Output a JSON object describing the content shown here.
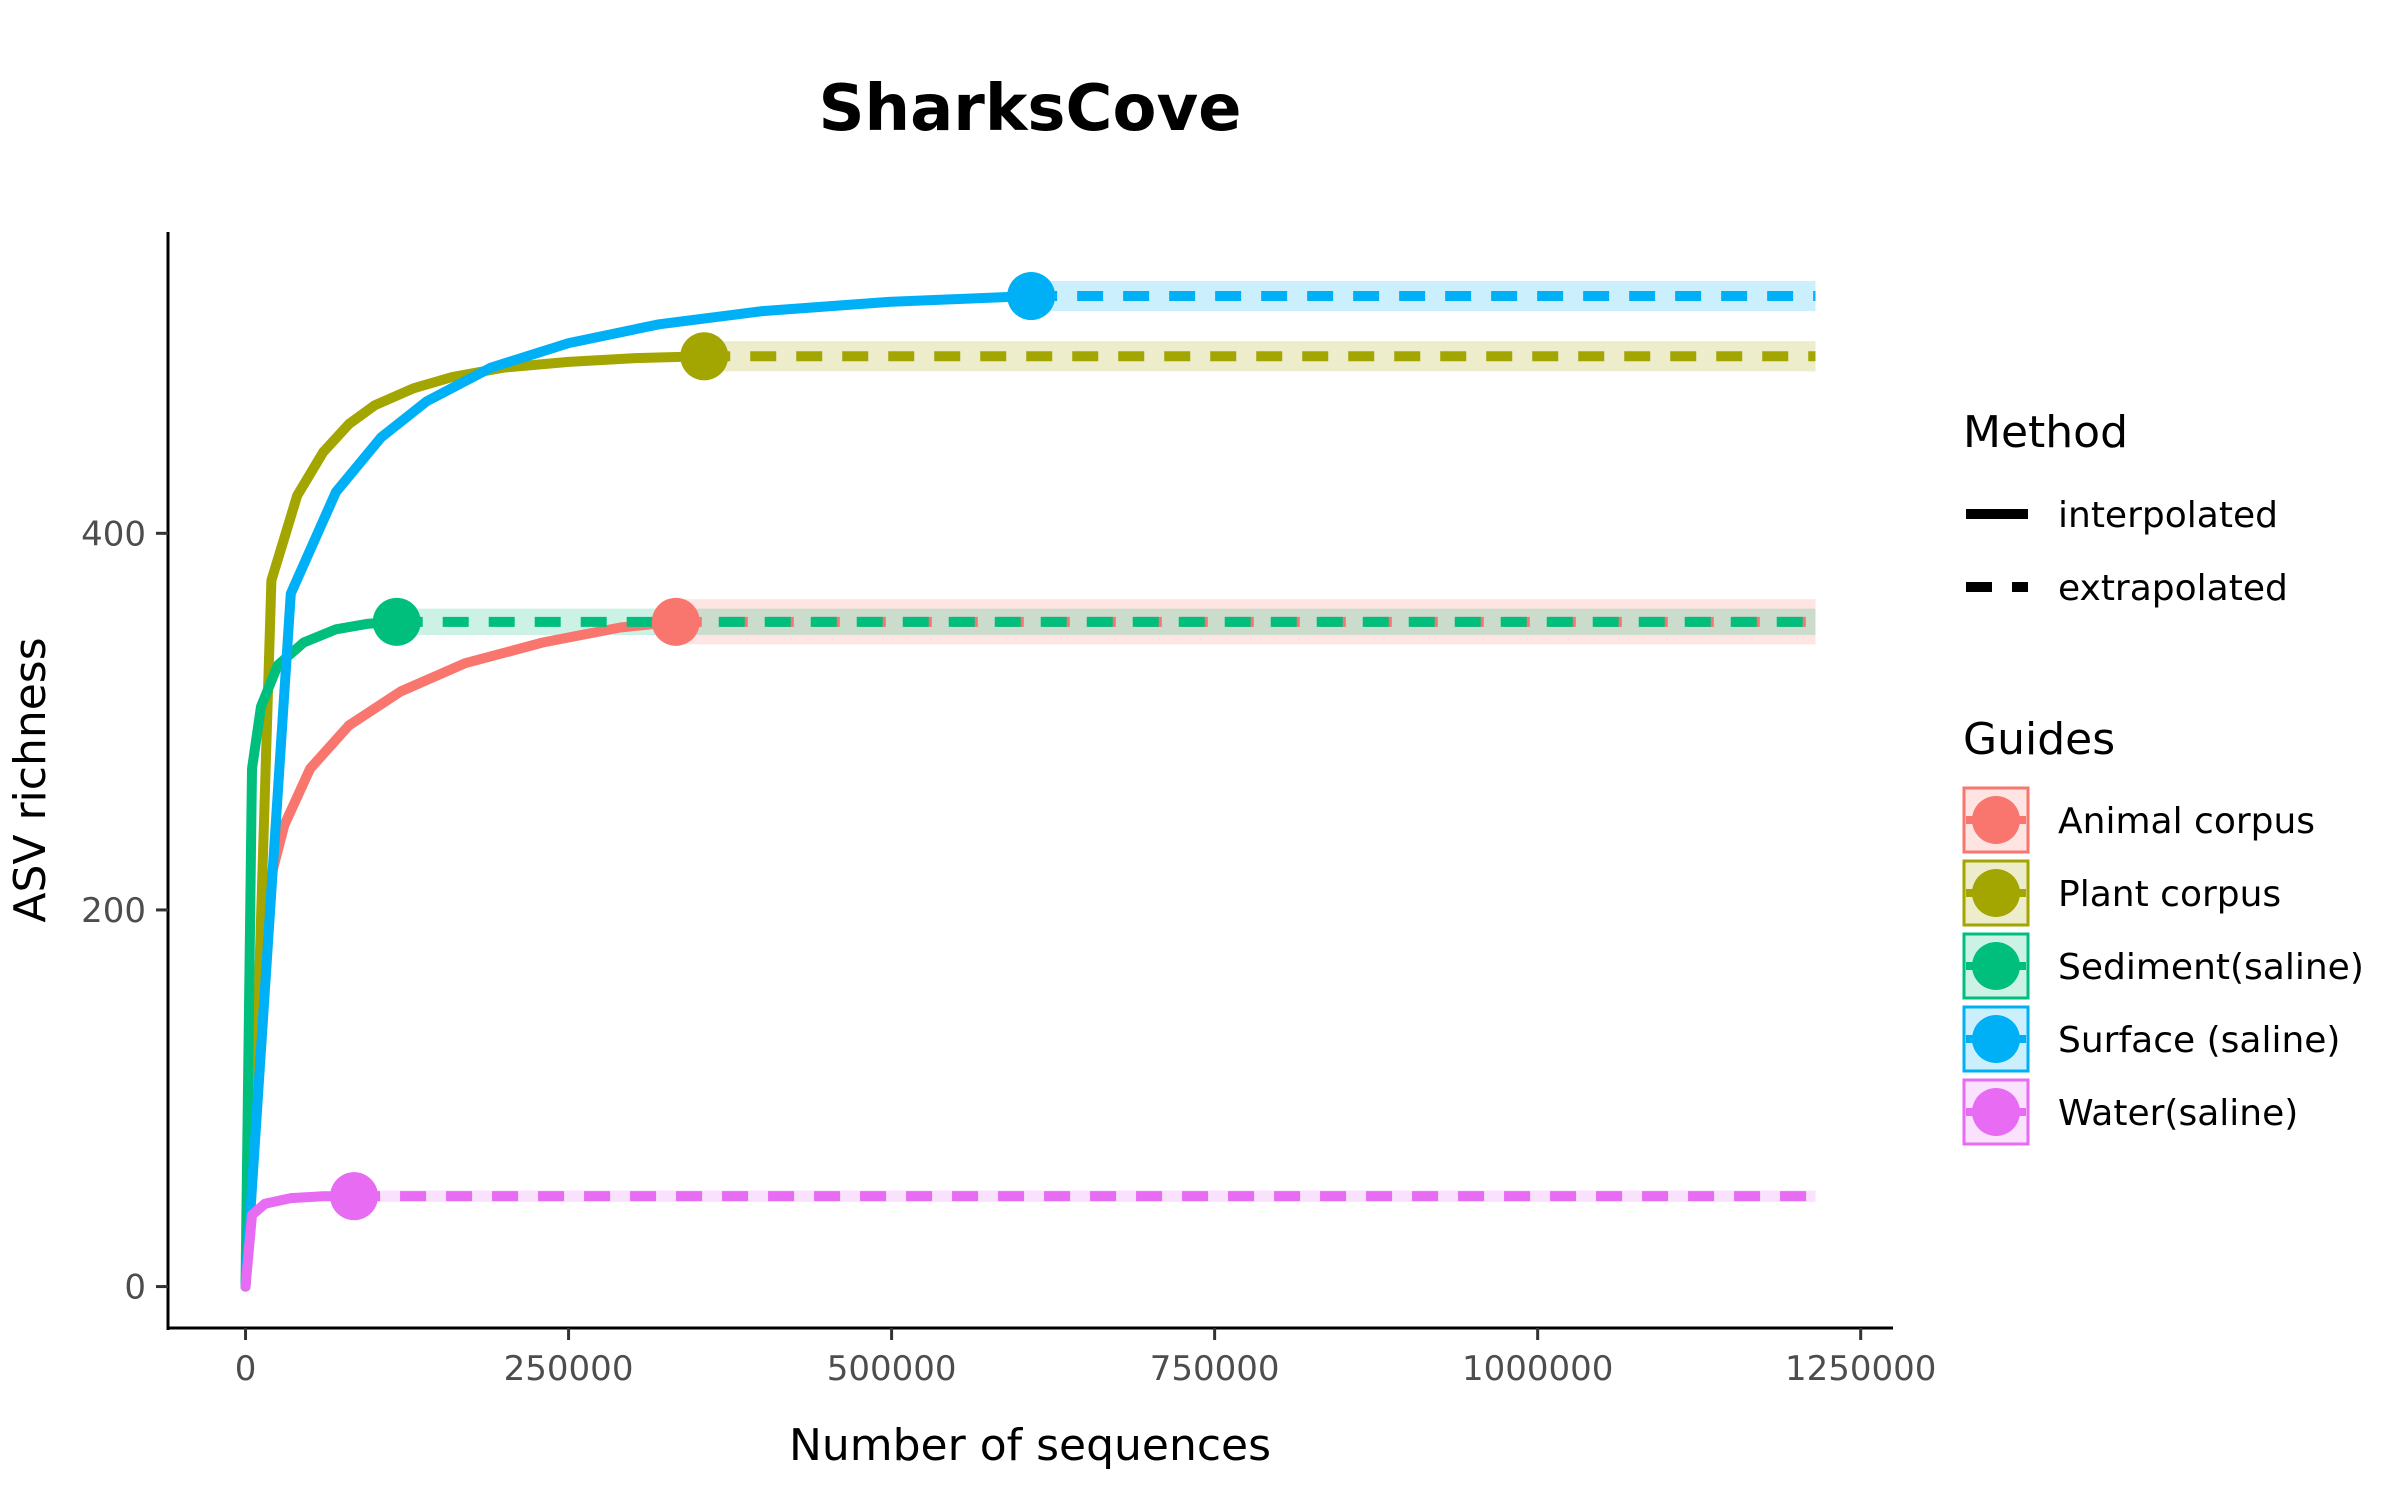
{
  "chart_data": {
    "type": "line",
    "title": "SharksCove",
    "xlabel": "Number of sequences",
    "ylabel": "ASV richness",
    "xlim": [
      -60000,
      1275000
    ],
    "ylim": [
      -22,
      560
    ],
    "x_ticks": [
      0,
      250000,
      500000,
      750000,
      1000000,
      1250000
    ],
    "x_tick_labels": [
      "0",
      "250000",
      "500000",
      "750000",
      "1000000",
      "1250000"
    ],
    "y_ticks": [
      0,
      200,
      400
    ],
    "y_tick_labels": [
      "0",
      "200",
      "400"
    ],
    "grid": false,
    "legend_position": "right",
    "method_legend": {
      "title": "Method",
      "entries": [
        {
          "label": "interpolated",
          "style": "solid"
        },
        {
          "label": "extrapolated",
          "style": "dashed"
        }
      ]
    },
    "series_legend_title": "Guides",
    "x_max_extrapolated": 1215000,
    "series": [
      {
        "name": "Animal corpus",
        "color": "#F8766D",
        "interpolated": [
          [
            0,
            0
          ],
          [
            15000,
            205
          ],
          [
            30000,
            245
          ],
          [
            50000,
            275
          ],
          [
            80000,
            298
          ],
          [
            120000,
            316
          ],
          [
            170000,
            331
          ],
          [
            230000,
            342
          ],
          [
            290000,
            350
          ],
          [
            333000,
            353
          ]
        ],
        "reference_point": [
          333000,
          353
        ],
        "extrapolated_value": 353,
        "ci_halfwidth": 12
      },
      {
        "name": "Plant corpus",
        "color": "#A3A500",
        "interpolated": [
          [
            0,
            0
          ],
          [
            10000,
            150
          ],
          [
            20000,
            375
          ],
          [
            40000,
            420
          ],
          [
            60000,
            443
          ],
          [
            80000,
            458
          ],
          [
            100000,
            468
          ],
          [
            130000,
            477
          ],
          [
            160000,
            483
          ],
          [
            200000,
            488
          ],
          [
            250000,
            491
          ],
          [
            300000,
            493
          ],
          [
            355000,
            494
          ]
        ],
        "reference_point": [
          355000,
          494
        ],
        "extrapolated_value": 494,
        "ci_halfwidth": 8
      },
      {
        "name": "Sediment(saline)",
        "color": "#00BF7D",
        "interpolated": [
          [
            0,
            0
          ],
          [
            5000,
            275
          ],
          [
            12000,
            308
          ],
          [
            25000,
            330
          ],
          [
            45000,
            342
          ],
          [
            70000,
            349
          ],
          [
            95000,
            352
          ],
          [
            117000,
            353
          ]
        ],
        "reference_point": [
          117000,
          353
        ],
        "extrapolated_value": 353,
        "ci_halfwidth": 7
      },
      {
        "name": "Surface (saline)",
        "color": "#00B0F6",
        "interpolated": [
          [
            0,
            0
          ],
          [
            35000,
            368
          ],
          [
            70000,
            422
          ],
          [
            105000,
            451
          ],
          [
            140000,
            470
          ],
          [
            190000,
            488
          ],
          [
            250000,
            501
          ],
          [
            320000,
            511
          ],
          [
            400000,
            518
          ],
          [
            500000,
            523
          ],
          [
            608000,
            526
          ]
        ],
        "reference_point": [
          608000,
          526
        ],
        "extrapolated_value": 526,
        "ci_halfwidth": 8
      },
      {
        "name": "Water(saline)",
        "color": "#E76BF3",
        "interpolated": [
          [
            0,
            0
          ],
          [
            5000,
            38
          ],
          [
            15000,
            44
          ],
          [
            35000,
            47
          ],
          [
            60000,
            48
          ],
          [
            84000,
            48
          ]
        ],
        "reference_point": [
          84000,
          48
        ],
        "extrapolated_value": 48,
        "ci_halfwidth": 3
      }
    ]
  }
}
